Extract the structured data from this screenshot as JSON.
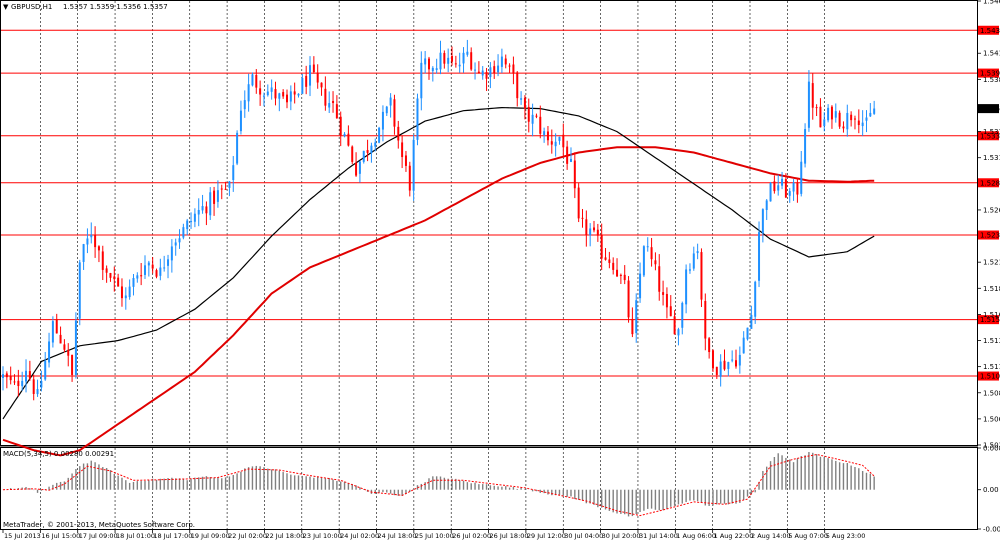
{
  "header": {
    "symbol_info": "GBPUSD,H1",
    "ohlc": "1.5357 1.5359 1.5356 1.5357"
  },
  "macd_label": "MACD(5,34,5) 0.00280 0.00291",
  "copyright": "MetaTrader, © 2001-2013, MetaQuotes Software Corp.",
  "colors": {
    "bull_candle": "#1e90ff",
    "bear_candle": "#ff0000",
    "grid": "#000000",
    "support_resistance": "#ff0000",
    "ma_fast": "#000000",
    "ma_slow": "#e00000",
    "macd_hist": "#808080",
    "macd_signal": "#ff0000"
  },
  "chart_data": [
    {
      "type": "candlestick",
      "title": "GBPUSD,H1",
      "ylim": [
        1.5035,
        1.546
      ],
      "y_ticks": [
        "1.5460",
        "1.5410",
        "1.5385",
        "1.5335",
        "1.5310",
        "1.5260",
        "1.5210",
        "1.5185",
        "1.5160",
        "1.5135",
        "1.5110",
        "1.5085",
        "1.5060",
        "1.5035"
      ],
      "x_ticks": [
        "15 Jul 2013",
        "16 Jul 15:00",
        "17 Jul 09:00",
        "18 Jul 01:00",
        "18 Jul 17:00",
        "19 Jul 09:00",
        "22 Jul 02:00",
        "22 Jul 18:00",
        "23 Jul 10:00",
        "24 Jul 02:00",
        "24 Jul 18:00",
        "25 Jul 10:00",
        "26 Jul 02:00",
        "26 Jul 18:00",
        "29 Jul 12:00",
        "30 Jul 04:00",
        "30 Jul 20:00",
        "31 Jul 14:00",
        "1 Aug 06:00",
        "1 Aug 22:00",
        "2 Aug 14:00",
        "5 Aug 07:00",
        "5 Aug 23:00"
      ],
      "horizontal_levels": [
        "1.5432",
        "1.5391",
        "1.5331",
        "1.5286",
        "1.5236",
        "1.5155",
        "1.5101"
      ],
      "current_price": "1.5357",
      "series": [
        {
          "name": "Close",
          "anchors": [
            [
              0,
              1.51
            ],
            [
              3,
              1.509
            ],
            [
              6,
              1.511
            ],
            [
              9,
              1.508
            ],
            [
              13,
              1.515
            ],
            [
              16,
              1.513
            ],
            [
              18,
              1.51
            ],
            [
              20,
              1.521
            ],
            [
              23,
              1.524
            ],
            [
              26,
              1.521
            ],
            [
              29,
              1.519
            ],
            [
              32,
              1.5175
            ],
            [
              35,
              1.52
            ],
            [
              38,
              1.521
            ],
            [
              41,
              1.52
            ],
            [
              44,
              1.523
            ],
            [
              47,
              1.524
            ],
            [
              50,
              1.5255
            ],
            [
              53,
              1.5265
            ],
            [
              56,
              1.5275
            ],
            [
              59,
              1.528
            ],
            [
              62,
              1.536
            ],
            [
              65,
              1.5385
            ],
            [
              68,
              1.5375
            ],
            [
              71,
              1.537
            ],
            [
              74,
              1.536
            ],
            [
              77,
              1.5375
            ],
            [
              80,
              1.539
            ],
            [
              83,
              1.537
            ],
            [
              86,
              1.536
            ],
            [
              89,
              1.533
            ],
            [
              92,
              1.53
            ],
            [
              95,
              1.532
            ],
            [
              98,
              1.534
            ],
            [
              101,
              1.536
            ],
            [
              104,
              1.531
            ],
            [
              106,
              1.5285
            ],
            [
              109,
              1.5395
            ],
            [
              112,
              1.54
            ],
            [
              115,
              1.5405
            ],
            [
              118,
              1.5395
            ],
            [
              121,
              1.541
            ],
            [
              124,
              1.539
            ],
            [
              127,
              1.5395
            ],
            [
              130,
              1.5405
            ],
            [
              133,
              1.5385
            ],
            [
              136,
              1.535
            ],
            [
              139,
              1.5345
            ],
            [
              142,
              1.5325
            ],
            [
              145,
              1.533
            ],
            [
              148,
              1.53
            ],
            [
              150,
              1.5245
            ],
            [
              153,
              1.524
            ],
            [
              156,
              1.522
            ],
            [
              159,
              1.521
            ],
            [
              162,
              1.5185
            ],
            [
              164,
              1.5135
            ],
            [
              167,
              1.523
            ],
            [
              170,
              1.52
            ],
            [
              173,
              1.516
            ],
            [
              176,
              1.5145
            ],
            [
              178,
              1.5205
            ],
            [
              181,
              1.5225
            ],
            [
              183,
              1.513
            ],
            [
              186,
              1.511
            ],
            [
              189,
              1.5115
            ],
            [
              192,
              1.512
            ],
            [
              195,
              1.516
            ],
            [
              197,
              1.524
            ],
            [
              199,
              1.5275
            ],
            [
              202,
              1.5285
            ],
            [
              205,
              1.5275
            ],
            [
              207,
              1.528
            ],
            [
              210,
              1.5375
            ],
            [
              213,
              1.534
            ],
            [
              216,
              1.5355
            ],
            [
              219,
              1.5345
            ],
            [
              222,
              1.5355
            ],
            [
              225,
              1.534
            ],
            [
              227,
              1.5357
            ]
          ]
        },
        {
          "name": "MA fast",
          "anchors": [
            [
              0,
              1.506
            ],
            [
              10,
              1.5115
            ],
            [
              20,
              1.513
            ],
            [
              30,
              1.5135
            ],
            [
              40,
              1.5145
            ],
            [
              50,
              1.5165
            ],
            [
              60,
              1.5195
            ],
            [
              70,
              1.5235
            ],
            [
              80,
              1.527
            ],
            [
              90,
              1.53
            ],
            [
              100,
              1.5325
            ],
            [
              110,
              1.5345
            ],
            [
              120,
              1.5355
            ],
            [
              130,
              1.5358
            ],
            [
              140,
              1.5357
            ],
            [
              150,
              1.535
            ],
            [
              160,
              1.5335
            ],
            [
              170,
              1.531
            ],
            [
              180,
              1.5285
            ],
            [
              190,
              1.526
            ],
            [
              200,
              1.5232
            ],
            [
              210,
              1.5215
            ],
            [
              220,
              1.522
            ],
            [
              227,
              1.5235
            ]
          ]
        },
        {
          "name": "MA slow",
          "anchors": [
            [
              0,
              1.504
            ],
            [
              8,
              1.503
            ],
            [
              15,
              1.5025
            ],
            [
              20,
              1.503
            ],
            [
              30,
              1.5055
            ],
            [
              40,
              1.508
            ],
            [
              50,
              1.5105
            ],
            [
              60,
              1.514
            ],
            [
              70,
              1.518
            ],
            [
              80,
              1.5205
            ],
            [
              90,
              1.522
            ],
            [
              100,
              1.5235
            ],
            [
              110,
              1.525
            ],
            [
              120,
              1.527
            ],
            [
              130,
              1.529
            ],
            [
              140,
              1.5305
            ],
            [
              150,
              1.5315
            ],
            [
              160,
              1.532
            ],
            [
              170,
              1.532
            ],
            [
              180,
              1.5315
            ],
            [
              190,
              1.5305
            ],
            [
              200,
              1.5295
            ],
            [
              210,
              1.5288
            ],
            [
              220,
              1.5287
            ],
            [
              227,
              1.5288
            ]
          ]
        }
      ]
    },
    {
      "type": "bar",
      "title": "MACD(5,34,5) 0.00280 0.00291",
      "ylim": [
        -0.00836,
        0.00888
      ],
      "y_ticks": [
        "0.00888",
        "0.00",
        "-0.00836"
      ],
      "series": [
        {
          "name": "MACD",
          "anchors": [
            [
              0,
              0.0
            ],
            [
              6,
              0.0005
            ],
            [
              9,
              -0.0006
            ],
            [
              13,
              0.001
            ],
            [
              16,
              0.0018
            ],
            [
              20,
              0.0052
            ],
            [
              23,
              0.006
            ],
            [
              26,
              0.005
            ],
            [
              30,
              0.003
            ],
            [
              33,
              0.0015
            ],
            [
              36,
              0.002
            ],
            [
              40,
              0.0022
            ],
            [
              44,
              0.0025
            ],
            [
              48,
              0.0022
            ],
            [
              52,
              0.0028
            ],
            [
              56,
              0.0025
            ],
            [
              60,
              0.003
            ],
            [
              64,
              0.005
            ],
            [
              68,
              0.0048
            ],
            [
              72,
              0.004
            ],
            [
              76,
              0.003
            ],
            [
              80,
              0.0028
            ],
            [
              84,
              0.0025
            ],
            [
              88,
              0.0018
            ],
            [
              92,
              0.001
            ],
            [
              96,
              -0.001
            ],
            [
              100,
              -0.0005
            ],
            [
              104,
              -0.0015
            ],
            [
              108,
              0.0008
            ],
            [
              112,
              0.0028
            ],
            [
              116,
              0.0025
            ],
            [
              120,
              0.0018
            ],
            [
              124,
              0.0012
            ],
            [
              128,
              0.001
            ],
            [
              132,
              0.0005
            ],
            [
              136,
              0.0002
            ],
            [
              140,
              -0.0005
            ],
            [
              144,
              -0.0012
            ],
            [
              148,
              -0.0015
            ],
            [
              152,
              -0.0028
            ],
            [
              156,
              -0.0038
            ],
            [
              160,
              -0.005
            ],
            [
              164,
              -0.0058
            ],
            [
              168,
              -0.004
            ],
            [
              172,
              -0.0045
            ],
            [
              176,
              -0.003
            ],
            [
              180,
              -0.0022
            ],
            [
              184,
              -0.0035
            ],
            [
              188,
              -0.003
            ],
            [
              192,
              -0.0028
            ],
            [
              196,
              -0.0005
            ],
            [
              198,
              0.004
            ],
            [
              202,
              0.0078
            ],
            [
              206,
              0.006
            ],
            [
              210,
              0.008
            ],
            [
              214,
              0.0068
            ],
            [
              218,
              0.006
            ],
            [
              222,
              0.005
            ],
            [
              227,
              0.0028
            ]
          ]
        },
        {
          "name": "Signal",
          "anchors": [
            [
              0,
              0.0
            ],
            [
              8,
              0.0002
            ],
            [
              12,
              -0.0001
            ],
            [
              16,
              0.0012
            ],
            [
              22,
              0.005
            ],
            [
              28,
              0.004
            ],
            [
              34,
              0.002
            ],
            [
              40,
              0.0021
            ],
            [
              48,
              0.0023
            ],
            [
              56,
              0.0026
            ],
            [
              64,
              0.0044
            ],
            [
              72,
              0.0042
            ],
            [
              80,
              0.003
            ],
            [
              88,
              0.002
            ],
            [
              96,
              -0.0005
            ],
            [
              104,
              -0.0012
            ],
            [
              112,
              0.002
            ],
            [
              120,
              0.002
            ],
            [
              128,
              0.0012
            ],
            [
              136,
              0.0004
            ],
            [
              144,
              -0.001
            ],
            [
              152,
              -0.0024
            ],
            [
              160,
              -0.0045
            ],
            [
              166,
              -0.0055
            ],
            [
              172,
              -0.0043
            ],
            [
              180,
              -0.0026
            ],
            [
              188,
              -0.0031
            ],
            [
              194,
              -0.002
            ],
            [
              200,
              0.005
            ],
            [
              206,
              0.0065
            ],
            [
              212,
              0.0075
            ],
            [
              218,
              0.0064
            ],
            [
              224,
              0.0052
            ],
            [
              227,
              0.0029
            ]
          ]
        }
      ]
    }
  ]
}
